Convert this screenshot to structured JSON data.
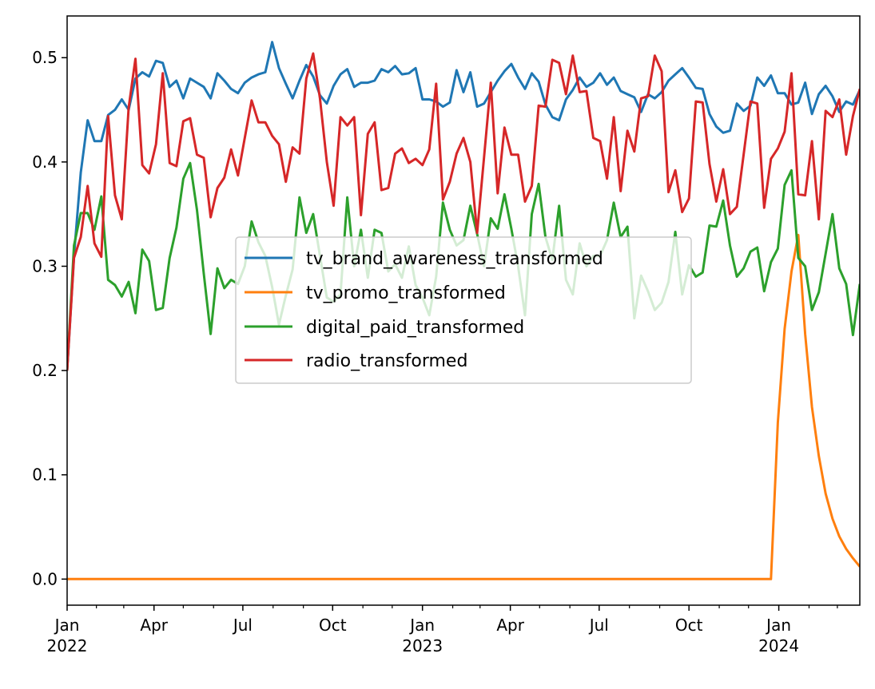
{
  "chart_data": {
    "type": "line",
    "title": "",
    "xlabel": "",
    "ylabel": "",
    "x": {
      "start": "2022-01-02",
      "frequency": "weekly"
    },
    "xlim": [
      "2022-01-02",
      "2024-03-24"
    ],
    "ylim": [
      -0.025,
      0.54
    ],
    "grid": false,
    "legend_position": "center",
    "yticks": [
      {
        "value": 0.0,
        "label": "0.0"
      },
      {
        "value": 0.1,
        "label": "0.1"
      },
      {
        "value": 0.2,
        "label": "0.2"
      },
      {
        "value": 0.3,
        "label": "0.3"
      },
      {
        "value": 0.4,
        "label": "0.4"
      },
      {
        "value": 0.5,
        "label": "0.5"
      }
    ],
    "xticks": [
      {
        "date": "2022-01-01",
        "label": "Jan",
        "sublabel": "2022"
      },
      {
        "date": "2022-04-01",
        "label": "Apr",
        "sublabel": ""
      },
      {
        "date": "2022-07-01",
        "label": "Jul",
        "sublabel": ""
      },
      {
        "date": "2022-10-01",
        "label": "Oct",
        "sublabel": ""
      },
      {
        "date": "2023-01-01",
        "label": "Jan",
        "sublabel": "2023"
      },
      {
        "date": "2023-04-01",
        "label": "Apr",
        "sublabel": ""
      },
      {
        "date": "2023-07-01",
        "label": "Jul",
        "sublabel": ""
      },
      {
        "date": "2023-10-01",
        "label": "Oct",
        "sublabel": ""
      },
      {
        "date": "2024-01-01",
        "label": "Jan",
        "sublabel": "2024"
      }
    ],
    "series": [
      {
        "name": "tv_brand_awareness_transformed",
        "color": "#1f77b4",
        "values": [
          0.2,
          0.31,
          0.39,
          0.44,
          0.42,
          0.42,
          0.445,
          0.45,
          0.46,
          0.45,
          0.48,
          0.486,
          0.482,
          0.497,
          0.495,
          0.472,
          0.478,
          0.461,
          0.48,
          0.476,
          0.472,
          0.461,
          0.485,
          0.478,
          0.47,
          0.466,
          0.476,
          0.481,
          0.484,
          0.486,
          0.515,
          0.49,
          0.475,
          0.461,
          0.478,
          0.493,
          0.482,
          0.464,
          0.456,
          0.473,
          0.484,
          0.489,
          0.472,
          0.476,
          0.476,
          0.478,
          0.489,
          0.486,
          0.492,
          0.484,
          0.485,
          0.49,
          0.46,
          0.46,
          0.458,
          0.453,
          0.457,
          0.488,
          0.467,
          0.486,
          0.453,
          0.456,
          0.467,
          0.478,
          0.487,
          0.494,
          0.481,
          0.47,
          0.485,
          0.477,
          0.455,
          0.443,
          0.44,
          0.46,
          0.469,
          0.481,
          0.472,
          0.476,
          0.485,
          0.474,
          0.481,
          0.468,
          0.465,
          0.462,
          0.448,
          0.465,
          0.461,
          0.467,
          0.478,
          0.484,
          0.49,
          0.481,
          0.471,
          0.47,
          0.446,
          0.434,
          0.428,
          0.43,
          0.456,
          0.449,
          0.454,
          0.481,
          0.473,
          0.483,
          0.466,
          0.466,
          0.455,
          0.457,
          0.476,
          0.446,
          0.465,
          0.473,
          0.463,
          0.448,
          0.458,
          0.455,
          0.469
        ]
      },
      {
        "name": "tv_promo_transformed",
        "color": "#ff7f0e",
        "values": [
          0,
          0,
          0,
          0,
          0,
          0,
          0,
          0,
          0,
          0,
          0,
          0,
          0,
          0,
          0,
          0,
          0,
          0,
          0,
          0,
          0,
          0,
          0,
          0,
          0,
          0,
          0,
          0,
          0,
          0,
          0,
          0,
          0,
          0,
          0,
          0,
          0,
          0,
          0,
          0,
          0,
          0,
          0,
          0,
          0,
          0,
          0,
          0,
          0,
          0,
          0,
          0,
          0,
          0,
          0,
          0,
          0,
          0,
          0,
          0,
          0,
          0,
          0,
          0,
          0,
          0,
          0,
          0,
          0,
          0,
          0,
          0,
          0,
          0,
          0,
          0,
          0,
          0,
          0,
          0,
          0,
          0,
          0,
          0,
          0,
          0,
          0,
          0,
          0,
          0,
          0,
          0,
          0,
          0,
          0,
          0,
          0,
          0,
          0,
          0,
          0,
          0,
          0,
          0,
          0.15,
          0.24,
          0.295,
          0.33,
          0.235,
          0.165,
          0.118,
          0.082,
          0.058,
          0.041,
          0.029,
          0.02,
          0.012
        ]
      },
      {
        "name": "digital_paid_transformed",
        "color": "#2ca02c",
        "values": [
          0.2,
          0.32,
          0.351,
          0.351,
          0.335,
          0.367,
          0.287,
          0.282,
          0.271,
          0.285,
          0.255,
          0.316,
          0.305,
          0.258,
          0.26,
          0.308,
          0.337,
          0.384,
          0.399,
          0.354,
          0.293,
          0.235,
          0.298,
          0.279,
          0.287,
          0.283,
          0.3,
          0.343,
          0.323,
          0.31,
          0.28,
          0.244,
          0.272,
          0.297,
          0.366,
          0.332,
          0.35,
          0.31,
          0.27,
          0.266,
          0.273,
          0.366,
          0.3,
          0.335,
          0.289,
          0.335,
          0.332,
          0.295,
          0.302,
          0.289,
          0.319,
          0.282,
          0.27,
          0.253,
          0.29,
          0.361,
          0.335,
          0.32,
          0.325,
          0.358,
          0.331,
          0.3,
          0.346,
          0.336,
          0.369,
          0.336,
          0.3,
          0.253,
          0.35,
          0.379,
          0.328,
          0.306,
          0.358,
          0.287,
          0.273,
          0.322,
          0.3,
          0.31,
          0.31,
          0.325,
          0.361,
          0.328,
          0.338,
          0.25,
          0.291,
          0.276,
          0.258,
          0.265,
          0.285,
          0.333,
          0.273,
          0.301,
          0.29,
          0.294,
          0.339,
          0.338,
          0.363,
          0.32,
          0.29,
          0.298,
          0.314,
          0.318,
          0.276,
          0.304,
          0.317,
          0.378,
          0.392,
          0.308,
          0.3,
          0.258,
          0.275,
          0.312,
          0.35,
          0.298,
          0.283,
          0.234,
          0.283
        ]
      },
      {
        "name": "radio_transformed",
        "color": "#d62728",
        "values": [
          0.2,
          0.308,
          0.328,
          0.377,
          0.322,
          0.309,
          0.444,
          0.368,
          0.345,
          0.452,
          0.499,
          0.397,
          0.389,
          0.417,
          0.485,
          0.399,
          0.396,
          0.439,
          0.442,
          0.407,
          0.404,
          0.347,
          0.375,
          0.385,
          0.412,
          0.387,
          0.423,
          0.459,
          0.438,
          0.438,
          0.425,
          0.417,
          0.381,
          0.414,
          0.408,
          0.48,
          0.504,
          0.461,
          0.4,
          0.358,
          0.443,
          0.435,
          0.443,
          0.349,
          0.427,
          0.438,
          0.373,
          0.375,
          0.408,
          0.413,
          0.399,
          0.403,
          0.397,
          0.412,
          0.475,
          0.364,
          0.381,
          0.408,
          0.423,
          0.4,
          0.332,
          0.404,
          0.476,
          0.37,
          0.433,
          0.407,
          0.407,
          0.362,
          0.377,
          0.454,
          0.453,
          0.498,
          0.495,
          0.465,
          0.502,
          0.467,
          0.468,
          0.423,
          0.42,
          0.384,
          0.443,
          0.372,
          0.43,
          0.41,
          0.461,
          0.463,
          0.502,
          0.487,
          0.371,
          0.392,
          0.352,
          0.365,
          0.458,
          0.457,
          0.398,
          0.362,
          0.393,
          0.35,
          0.357,
          0.407,
          0.458,
          0.456,
          0.356,
          0.403,
          0.413,
          0.429,
          0.485,
          0.369,
          0.368,
          0.42,
          0.345,
          0.449,
          0.443,
          0.46,
          0.407,
          0.444,
          0.47
        ]
      }
    ]
  }
}
